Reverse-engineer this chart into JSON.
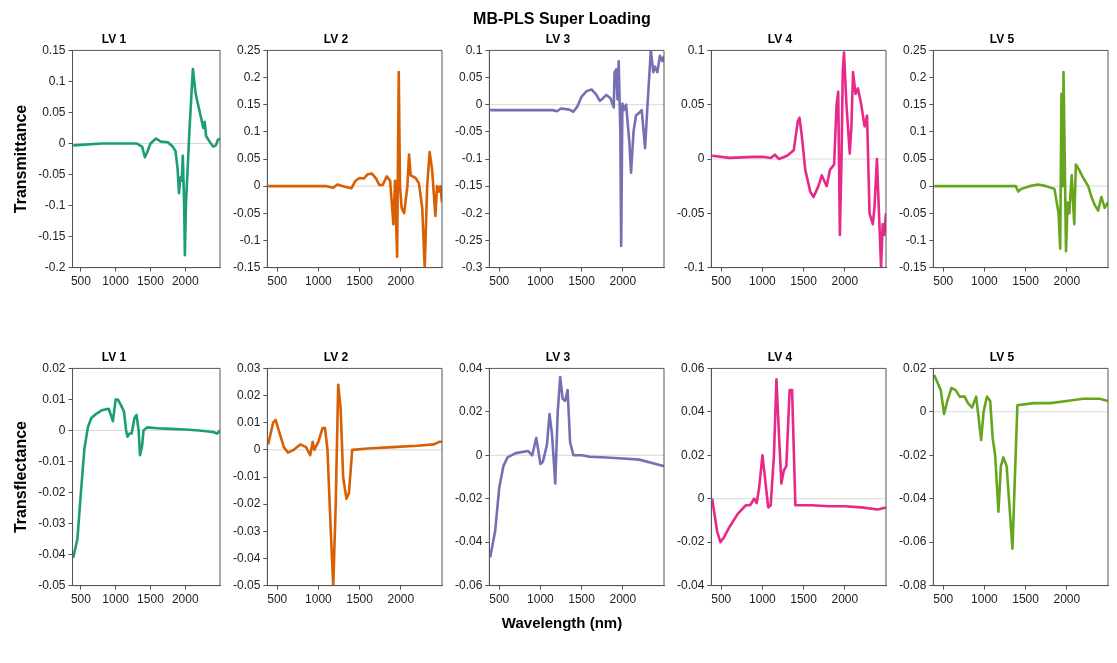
{
  "chart_data": [
    {
      "type": "line",
      "title": "LV 1",
      "ylabel": "Transmittance",
      "xlim": [
        380,
        2500
      ],
      "xticks": [
        500,
        1000,
        1500,
        2000
      ],
      "ylim": [
        -0.2,
        0.15
      ],
      "yticks": [
        -0.2,
        -0.15,
        -0.1,
        -0.05,
        0,
        0.05,
        0.1,
        0.15
      ],
      "ref_lines": [
        {
          "axis": "y",
          "value": 0,
          "color": "#d9d9d9"
        }
      ],
      "marker": "none",
      "legend": false,
      "series": [
        {
          "color": "#1b9e77",
          "x": [
            390,
            800,
            1000,
            1300,
            1380,
            1420,
            1450,
            1500,
            1580,
            1650,
            1750,
            1820,
            1860,
            1890,
            1910,
            1930,
            1950,
            1965,
            1985,
            1995,
            2010,
            2060,
            2110,
            2150,
            2220,
            2260,
            2280,
            2300,
            2350,
            2400,
            2440,
            2470,
            2500
          ],
          "values": [
            -0.003,
            0,
            0,
            0,
            -0.005,
            -0.022,
            -0.015,
            0,
            0.008,
            0.003,
            0.002,
            -0.005,
            -0.012,
            -0.04,
            -0.08,
            -0.055,
            -0.06,
            -0.02,
            -0.1,
            -0.18,
            -0.1,
            0.02,
            0.12,
            0.08,
            0.045,
            0.025,
            0.035,
            0.012,
            0.003,
            -0.005,
            -0.003,
            0.006,
            0.008
          ]
        }
      ]
    },
    {
      "type": "line",
      "title": "LV 2",
      "xlim": [
        380,
        2500
      ],
      "xticks": [
        500,
        1000,
        1500,
        2000
      ],
      "ylim": [
        -0.15,
        0.25
      ],
      "yticks": [
        -0.15,
        -0.1,
        -0.05,
        0,
        0.05,
        0.1,
        0.15,
        0.2,
        0.25
      ],
      "ref_lines": [
        {
          "axis": "y",
          "value": 0,
          "color": "#d9d9d9"
        }
      ],
      "marker": "none",
      "legend": false,
      "series": [
        {
          "color": "#d95f02",
          "x": [
            390,
            1100,
            1180,
            1230,
            1300,
            1400,
            1450,
            1500,
            1550,
            1600,
            1650,
            1700,
            1740,
            1780,
            1830,
            1870,
            1910,
            1930,
            1955,
            1975,
            1990,
            2010,
            2040,
            2080,
            2100,
            2120,
            2180,
            2220,
            2260,
            2290,
            2320,
            2350,
            2380,
            2420,
            2440,
            2460,
            2480,
            2500
          ],
          "values": [
            0,
            0,
            -0.003,
            0.003,
            0,
            -0.004,
            0.01,
            0.015,
            0.014,
            0.022,
            0.023,
            0.014,
            0.002,
            0.002,
            0.018,
            0.01,
            -0.07,
            0.01,
            -0.13,
            0.21,
            0,
            -0.04,
            -0.05,
            0,
            0.058,
            0.02,
            0.015,
            0.005,
            -0.04,
            -0.15,
            0,
            0.063,
            0.03,
            -0.055,
            0,
            -0.01,
            0,
            -0.03
          ]
        }
      ]
    },
    {
      "type": "line",
      "title": "LV 3",
      "annotations": [
        "MB-PLS Super Loading"
      ],
      "xlim": [
        380,
        2500
      ],
      "xticks": [
        500,
        1000,
        1500,
        2000
      ],
      "ylim": [
        -0.3,
        0.1
      ],
      "yticks": [
        -0.3,
        -0.25,
        -0.2,
        -0.15,
        -0.1,
        -0.05,
        0,
        0.05,
        0.1
      ],
      "ref_lines": [
        {
          "axis": "y",
          "value": 0,
          "color": "#d9d9d9"
        }
      ],
      "marker": "none",
      "legend": false,
      "series": [
        {
          "color": "#7570b3",
          "x": [
            390,
            1150,
            1200,
            1250,
            1350,
            1400,
            1450,
            1500,
            1560,
            1620,
            1680,
            1720,
            1760,
            1800,
            1850,
            1890,
            1900,
            1920,
            1935,
            1950,
            1970,
            1980,
            1995,
            2010,
            2040,
            2080,
            2100,
            2130,
            2160,
            2200,
            2230,
            2270,
            2300,
            2340,
            2370,
            2390,
            2420,
            2450,
            2480,
            2500
          ],
          "values": [
            -0.01,
            -0.01,
            -0.012,
            -0.007,
            -0.009,
            -0.013,
            -0.003,
            0.015,
            0.025,
            0.028,
            0.018,
            0.007,
            0.012,
            0.018,
            0.012,
            -0.005,
            0.06,
            0.065,
            0.01,
            0.08,
            -0.05,
            -0.26,
            0.002,
            -0.01,
            0,
            -0.07,
            -0.125,
            -0.05,
            -0.02,
            -0.015,
            -0.01,
            -0.08,
            0,
            0.1,
            0.06,
            0.07,
            0.06,
            0.09,
            0.08,
            0.09
          ]
        }
      ]
    },
    {
      "type": "line",
      "title": "LV 4",
      "xlim": [
        380,
        2500
      ],
      "xticks": [
        500,
        1000,
        1500,
        2000
      ],
      "ylim": [
        -0.1,
        0.1
      ],
      "yticks": [
        -0.1,
        -0.05,
        0,
        0.05,
        0.1
      ],
      "ref_lines": [
        {
          "axis": "y",
          "value": 0,
          "color": "#d9d9d9"
        }
      ],
      "marker": "none",
      "legend": false,
      "series": [
        {
          "color": "#e7298a",
          "x": [
            390,
            600,
            900,
            1000,
            1100,
            1150,
            1200,
            1300,
            1380,
            1430,
            1450,
            1480,
            1520,
            1580,
            1620,
            1680,
            1720,
            1750,
            1780,
            1820,
            1870,
            1900,
            1920,
            1940,
            1960,
            1975,
            1990,
            2020,
            2060,
            2080,
            2100,
            2130,
            2160,
            2200,
            2240,
            2270,
            2300,
            2340,
            2360,
            2390,
            2420,
            2440,
            2460,
            2480,
            2500
          ],
          "values": [
            0.003,
            0.001,
            0.002,
            0.002,
            0.001,
            0.004,
            0,
            0.003,
            0.008,
            0.035,
            0.038,
            0.02,
            -0.01,
            -0.03,
            -0.035,
            -0.025,
            -0.015,
            -0.02,
            -0.025,
            -0.01,
            -0.005,
            0.05,
            0.062,
            -0.07,
            0,
            0.08,
            0.098,
            0.05,
            0.005,
            0.03,
            0.08,
            0.06,
            0.065,
            0.05,
            0.03,
            0.04,
            -0.05,
            -0.06,
            -0.045,
            0,
            -0.06,
            -0.1,
            -0.06,
            -0.07,
            -0.05
          ]
        }
      ]
    },
    {
      "type": "line",
      "title": "LV 5",
      "xlim": [
        380,
        2500
      ],
      "xticks": [
        500,
        1000,
        1500,
        2000
      ],
      "ylim": [
        -0.15,
        0.25
      ],
      "yticks": [
        -0.15,
        -0.1,
        -0.05,
        0,
        0.05,
        0.1,
        0.15,
        0.2,
        0.25
      ],
      "ref_lines": [
        {
          "axis": "y",
          "value": 0,
          "color": "#d9d9d9"
        }
      ],
      "marker": "none",
      "legend": false,
      "series": [
        {
          "color": "#66a61e",
          "x": [
            390,
            1300,
            1380,
            1410,
            1450,
            1550,
            1650,
            1750,
            1850,
            1900,
            1920,
            1935,
            1950,
            1960,
            1975,
            1990,
            2010,
            2030,
            2060,
            2090,
            2110,
            2150,
            2200,
            2260,
            2300,
            2340,
            2380,
            2420,
            2460,
            2500
          ],
          "values": [
            0,
            0,
            0,
            -0.01,
            -0.005,
            0,
            0.003,
            0,
            -0.005,
            -0.05,
            -0.115,
            0.17,
            0,
            0.21,
            0.05,
            -0.12,
            -0.03,
            -0.05,
            0.02,
            -0.07,
            0.04,
            0.03,
            0.015,
            0,
            -0.02,
            -0.035,
            -0.045,
            -0.02,
            -0.04,
            -0.03
          ]
        }
      ]
    },
    {
      "type": "line",
      "title": "LV 1",
      "ylabel": "Transflectance",
      "xlim": [
        380,
        2500
      ],
      "xticks": [
        500,
        1000,
        1500,
        2000
      ],
      "ylim": [
        -0.05,
        0.02
      ],
      "yticks": [
        -0.05,
        -0.04,
        -0.03,
        -0.02,
        -0.01,
        0,
        0.01,
        0.02
      ],
      "ref_lines": [
        {
          "axis": "y",
          "value": 0,
          "color": "#d9d9d9"
        }
      ],
      "marker": "none",
      "legend": false,
      "series": [
        {
          "color": "#1b9e77",
          "x": [
            390,
            450,
            500,
            550,
            600,
            650,
            700,
            800,
            900,
            930,
            960,
            1000,
            1030,
            1080,
            1120,
            1150,
            1170,
            1200,
            1230,
            1270,
            1300,
            1330,
            1350,
            1380,
            1400,
            1450,
            1600,
            1800,
            2000,
            2200,
            2400,
            2460,
            2500
          ],
          "values": [
            -0.041,
            -0.035,
            -0.02,
            -0.006,
            0.001,
            0.004,
            0.005,
            0.0065,
            0.007,
            0.005,
            0.003,
            0.01,
            0.01,
            0.008,
            0.006,
            0,
            -0.002,
            -0.001,
            -0.001,
            0.004,
            0.005,
            0,
            -0.008,
            -0.005,
            0,
            0.001,
            0.0007,
            0.0005,
            0.0003,
            0,
            -0.0005,
            -0.001,
            0
          ]
        }
      ]
    },
    {
      "type": "line",
      "title": "LV 2",
      "xlim": [
        380,
        2500
      ],
      "xticks": [
        500,
        1000,
        1500,
        2000
      ],
      "ylim": [
        -0.05,
        0.03
      ],
      "yticks": [
        -0.05,
        -0.04,
        -0.03,
        -0.02,
        -0.01,
        0,
        0.01,
        0.02,
        0.03
      ],
      "ref_lines": [
        {
          "axis": "y",
          "value": 0,
          "color": "#d9d9d9"
        }
      ],
      "marker": "none",
      "legend": false,
      "series": [
        {
          "color": "#d95f02",
          "x": [
            390,
            450,
            480,
            520,
            580,
            630,
            700,
            780,
            850,
            900,
            930,
            950,
            1000,
            1050,
            1080,
            1110,
            1150,
            1180,
            1210,
            1240,
            1270,
            1300,
            1340,
            1370,
            1410,
            1600,
            1900,
            2200,
            2400,
            2470,
            2500
          ],
          "values": [
            0.002,
            0.01,
            0.011,
            0.007,
            0.001,
            -0.001,
            0,
            0.002,
            0.001,
            -0.002,
            0.003,
            0,
            0.003,
            0.008,
            0.008,
            0,
            -0.03,
            -0.05,
            -0.02,
            0.024,
            0.015,
            -0.01,
            -0.018,
            -0.016,
            0,
            0.0005,
            0.001,
            0.0015,
            0.002,
            0.003,
            0.003
          ]
        }
      ]
    },
    {
      "type": "line",
      "title": "LV 3",
      "xlabel": "Wavelength (nm)",
      "xlim": [
        380,
        2500
      ],
      "xticks": [
        500,
        1000,
        1500,
        2000
      ],
      "ylim": [
        -0.06,
        0.04
      ],
      "yticks": [
        -0.06,
        -0.04,
        -0.02,
        0,
        0.02,
        0.04
      ],
      "ref_lines": [
        {
          "axis": "y",
          "value": 0,
          "color": "#d9d9d9"
        }
      ],
      "marker": "none",
      "legend": false,
      "series": [
        {
          "color": "#7570b3",
          "x": [
            390,
            450,
            500,
            550,
            600,
            700,
            850,
            900,
            950,
            1000,
            1030,
            1080,
            1110,
            1140,
            1180,
            1210,
            1240,
            1270,
            1300,
            1330,
            1360,
            1400,
            1500,
            1600,
            1800,
            2000,
            2200,
            2400,
            2500
          ],
          "values": [
            -0.047,
            -0.035,
            -0.015,
            -0.005,
            -0.001,
            0.001,
            0.002,
            0,
            0.008,
            -0.004,
            -0.003,
            0.005,
            0.019,
            0.01,
            -0.013,
            0.02,
            0.036,
            0.026,
            0.025,
            0.03,
            0.006,
            0,
            0,
            -0.0007,
            -0.001,
            -0.0015,
            -0.002,
            -0.004,
            -0.005
          ]
        }
      ]
    },
    {
      "type": "line",
      "title": "LV 4",
      "xlim": [
        380,
        2500
      ],
      "xticks": [
        500,
        1000,
        1500,
        2000
      ],
      "ylim": [
        -0.04,
        0.06
      ],
      "yticks": [
        -0.04,
        -0.02,
        0,
        0.02,
        0.04,
        0.06
      ],
      "ref_lines": [
        {
          "axis": "y",
          "value": 0,
          "color": "#d9d9d9"
        }
      ],
      "marker": "none",
      "legend": false,
      "series": [
        {
          "color": "#e7298a",
          "x": [
            390,
            450,
            490,
            530,
            600,
            700,
            800,
            850,
            900,
            930,
            960,
            1000,
            1030,
            1070,
            1100,
            1140,
            1170,
            1200,
            1230,
            1260,
            1290,
            1330,
            1360,
            1400,
            1600,
            1800,
            2000,
            2200,
            2400,
            2500
          ],
          "values": [
            0,
            -0.015,
            -0.02,
            -0.018,
            -0.013,
            -0.007,
            -0.003,
            -0.003,
            0,
            -0.002,
            0.005,
            0.02,
            0.01,
            -0.004,
            -0.003,
            0.02,
            0.055,
            0.03,
            0.007,
            0.013,
            0.015,
            0.05,
            0.05,
            -0.003,
            -0.003,
            -0.0035,
            -0.0035,
            -0.004,
            -0.005,
            -0.004
          ]
        }
      ]
    },
    {
      "type": "line",
      "title": "LV 5",
      "xlim": [
        380,
        2500
      ],
      "xticks": [
        500,
        1000,
        1500,
        2000
      ],
      "ylim": [
        -0.08,
        0.02
      ],
      "yticks": [
        -0.08,
        -0.06,
        -0.04,
        -0.02,
        0,
        0.02
      ],
      "ref_lines": [
        {
          "axis": "y",
          "value": 0,
          "color": "#d9d9d9"
        }
      ],
      "marker": "none",
      "legend": false,
      "series": [
        {
          "color": "#66a61e",
          "x": [
            390,
            470,
            510,
            550,
            600,
            650,
            700,
            760,
            800,
            850,
            900,
            960,
            990,
            1030,
            1070,
            1100,
            1130,
            1170,
            1200,
            1230,
            1270,
            1340,
            1370,
            1400,
            1600,
            1800,
            2000,
            2200,
            2400,
            2500
          ],
          "values": [
            0.017,
            0.01,
            -0.001,
            0.005,
            0.011,
            0.01,
            0.007,
            0.007,
            0.004,
            0.002,
            0.007,
            -0.013,
            0,
            0.007,
            0.005,
            -0.012,
            -0.02,
            -0.046,
            -0.025,
            -0.021,
            -0.025,
            -0.063,
            -0.03,
            0.003,
            0.004,
            0.004,
            0.005,
            0.006,
            0.006,
            0.005
          ]
        }
      ]
    }
  ]
}
